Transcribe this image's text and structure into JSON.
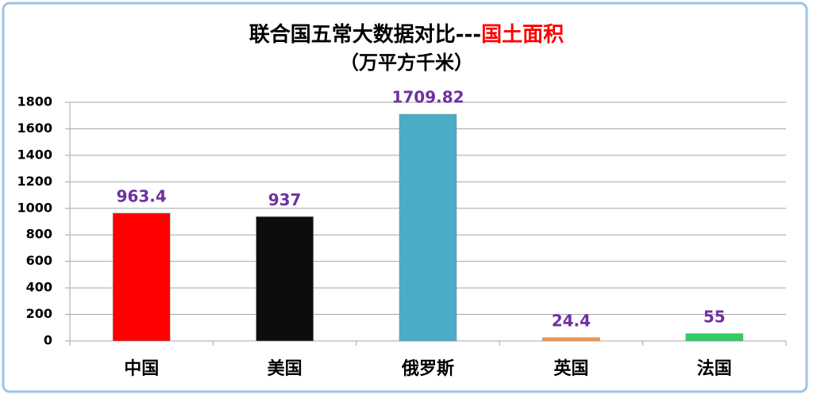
{
  "chart_data": {
    "type": "bar",
    "title": "联合国五常大数据对比---",
    "title_highlight": "国土面积",
    "subtitle": "（万平方千米）",
    "categories": [
      "中国",
      "美国",
      "俄罗斯",
      "英国",
      "法国"
    ],
    "values": [
      963.4,
      937,
      1709.82,
      24.4,
      55
    ],
    "colors": [
      "#ff0000",
      "#0d0d0d",
      "#4bacc6",
      "#f79646",
      "#33cc66"
    ],
    "ylim": [
      0,
      1800
    ],
    "yticks": [
      0,
      200,
      400,
      600,
      800,
      1000,
      1200,
      1400,
      1600,
      1800
    ],
    "grid": true
  }
}
